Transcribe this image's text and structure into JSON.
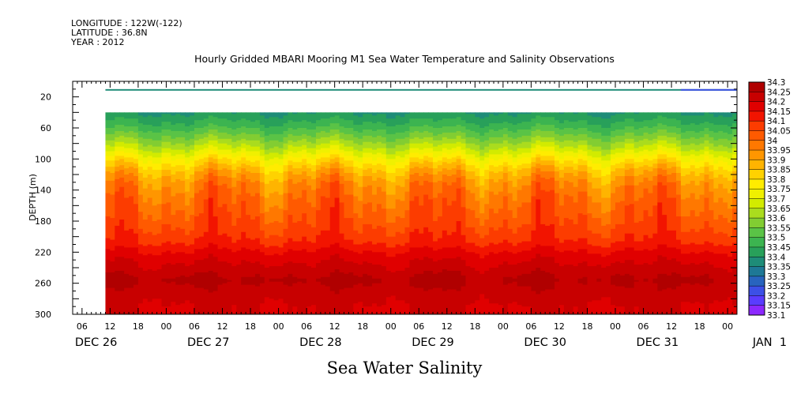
{
  "meta": {
    "longitude": "LONGITUDE : 122W(-122)",
    "latitude": "LATITUDE : 36.8N",
    "year": "YEAR : 2012"
  },
  "chart_data": {
    "type": "heatmap",
    "title": "Hourly Gridded MBARI Mooring M1 Sea Water Temperature and Salinity Observations",
    "bottom_title": "Sea Water Salinity",
    "ylabel": "DEPTH (m)",
    "ylim": [
      300,
      0
    ],
    "y_ticks": [
      20,
      60,
      100,
      140,
      180,
      220,
      260,
      300
    ],
    "x_hour_ticks": [
      "00",
      "06",
      "12",
      "18",
      "00",
      "06",
      "12",
      "18",
      "00",
      "06",
      "12",
      "18",
      "00",
      "06",
      "12",
      "18",
      "00",
      "06",
      "12",
      "18",
      "00",
      "06",
      "12",
      "18",
      "00",
      "06",
      "12",
      "18"
    ],
    "x_day_labels": [
      "DEC 26",
      "DEC 27",
      "DEC 28",
      "DEC 29",
      "DEC 30",
      "DEC 31",
      "JAN  1"
    ],
    "x_range_hours": [
      -2,
      140
    ],
    "data_start_hour": 5,
    "top_band": {
      "depth_range": [
        10,
        12
      ],
      "value": 33.35
    },
    "gap_depth_range": [
      12,
      40
    ],
    "colorbar": {
      "levels": [
        "34.3",
        "34.25",
        "34.2",
        "34.15",
        "34.1",
        "34.05",
        "34",
        "33.95",
        "33.9",
        "33.85",
        "33.8",
        "33.75",
        "33.7",
        "33.65",
        "33.6",
        "33.55",
        "33.5",
        "33.45",
        "33.4",
        "33.35",
        "33.3",
        "33.25",
        "33.2",
        "33.15",
        "33.1"
      ],
      "colors": [
        "#b00000",
        "#c80000",
        "#e00000",
        "#f21400",
        "#fc3c00",
        "#ff5a00",
        "#ff7800",
        "#ff9600",
        "#ffb400",
        "#ffd200",
        "#ffec00",
        "#f0f000",
        "#d2eb00",
        "#aadc1e",
        "#82cd32",
        "#5ac346",
        "#3cb450",
        "#28a05a",
        "#1e8c78",
        "#1e7896",
        "#2864be",
        "#3c50e6",
        "#5a3cff",
        "#8c28ff",
        "#c800ff"
      ]
    },
    "salinity_profile": [
      {
        "depth": 40,
        "value": 33.4
      },
      {
        "depth": 55,
        "value": 33.47
      },
      {
        "depth": 70,
        "value": 33.56
      },
      {
        "depth": 85,
        "value": 33.66
      },
      {
        "depth": 100,
        "value": 33.78
      },
      {
        "depth": 115,
        "value": 33.88
      },
      {
        "depth": 130,
        "value": 33.95
      },
      {
        "depth": 150,
        "value": 34.0
      },
      {
        "depth": 180,
        "value": 34.05
      },
      {
        "depth": 205,
        "value": 34.1
      },
      {
        "depth": 222,
        "value": 34.17
      },
      {
        "depth": 240,
        "value": 34.22
      },
      {
        "depth": 255,
        "value": 34.26
      },
      {
        "depth": 270,
        "value": 34.23
      },
      {
        "depth": 290,
        "value": 34.2
      },
      {
        "depth": 300,
        "value": 34.2
      }
    ]
  }
}
